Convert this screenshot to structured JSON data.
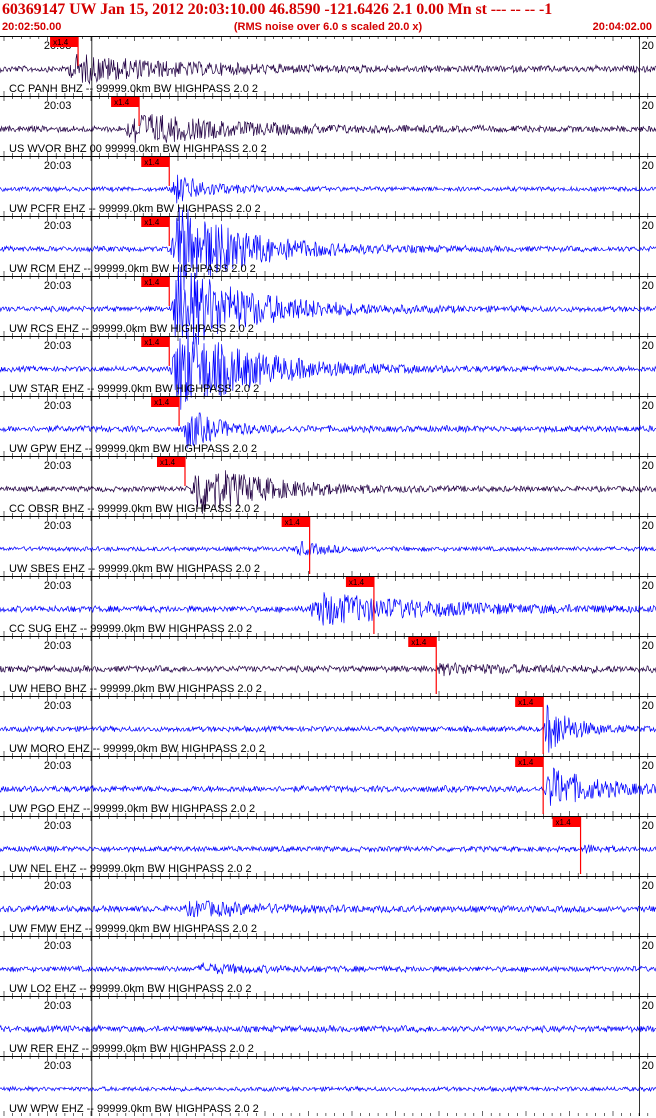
{
  "header": {
    "title": "60369147 UW Jan 15, 2012 20:03:10.00   46.8590 -121.6426  2.1 0.00 Mn st --- -- --  -1",
    "start_time": "20:02:50.00",
    "noise_note": "(RMS noise over 6.0 s scaled 20.0 x)",
    "end_time": "20:04:02.00"
  },
  "colors": {
    "header_text": "#d40000",
    "trace_blue": "#0000ff",
    "trace_dark": "#220044",
    "pick": "#ff0000",
    "grid": "#000000"
  },
  "minute_label": "20:03",
  "minute_label_right": "20",
  "pick_label": "x1.4",
  "traces": [
    {
      "label": "CC PANH BHZ -- 99999.0km BW  HIGHPASS  2.0  2",
      "color": "dark",
      "pick": 0.119,
      "onset": 0.1,
      "amp": 0.5,
      "noise": 0.14,
      "dur": 0.35,
      "pickline": false
    },
    {
      "label": "US WVOR BHZ 00 99999.0km BW  HIGHPASS  2.0  2",
      "color": "dark",
      "pick": 0.212,
      "onset": 0.19,
      "amp": 0.6,
      "noise": 0.14,
      "dur": 0.3,
      "pickline": false
    },
    {
      "label": "UW PCFR EHZ -- 99999.0km BW  HIGHPASS  2.0  2",
      "color": "blue",
      "pick": 0.258,
      "onset": 0.26,
      "amp": 0.55,
      "noise": 0.1,
      "dur": 0.12,
      "pickline": false
    },
    {
      "label": "UW RCM EHZ -- 99999.0km BW  HIGHPASS  2.0  2",
      "color": "blue",
      "pick": 0.258,
      "onset": 0.26,
      "amp": 1.7,
      "noise": 0.12,
      "dur": 0.22,
      "pickline": false
    },
    {
      "label": "UW RCS EHZ -- 99999.0km BW  HIGHPASS  2.0  2",
      "color": "blue",
      "pick": 0.258,
      "onset": 0.26,
      "amp": 1.7,
      "noise": 0.12,
      "dur": 0.24,
      "pickline": false
    },
    {
      "label": "UW STAR EHZ -- 99999.0km BW  HIGHPASS  2.0  2",
      "color": "blue",
      "pick": 0.258,
      "onset": 0.26,
      "amp": 1.7,
      "noise": 0.12,
      "dur": 0.24,
      "pickline": false
    },
    {
      "label": "UW GPW EHZ -- 99999.0km BW  HIGHPASS  2.0  2",
      "color": "blue",
      "pick": 0.273,
      "onset": 0.28,
      "amp": 0.75,
      "noise": 0.14,
      "dur": 0.1,
      "pickline": false
    },
    {
      "label": "CC OBSR BHZ -- 99999.0km BW  HIGHPASS  2.0  2",
      "color": "dark",
      "pick": 0.282,
      "onset": 0.29,
      "amp": 1.0,
      "noise": 0.12,
      "dur": 0.22,
      "pickline": false
    },
    {
      "label": "UW SBES EHZ -- 99999.0km BW  HIGHPASS  2.0  2",
      "color": "blue",
      "pick": 0.472,
      "onset": 0.45,
      "amp": 0.25,
      "noise": 0.1,
      "dur": 0.1,
      "pickline": true
    },
    {
      "label": "CC SUG EHZ -- 99999.0km BW  HIGHPASS  2.0  2",
      "color": "blue",
      "pick": 0.57,
      "onset": 0.47,
      "amp": 0.6,
      "noise": 0.14,
      "dur": 0.35,
      "pickline": true
    },
    {
      "label": "UW HEBO BHZ -- 99999.0km BW  HIGHPASS  2.0  2",
      "color": "dark",
      "pick": 0.665,
      "onset": 0.66,
      "amp": 0.15,
      "noise": 0.14,
      "dur": 0.3,
      "pickline": true
    },
    {
      "label": "UW MORO EHZ -- 99999.0km BW  HIGHPASS  2.0  2",
      "color": "blue",
      "pick": 0.828,
      "onset": 0.83,
      "amp": 1.0,
      "noise": 0.12,
      "dur": 0.08,
      "pickline": true
    },
    {
      "label": "UW PGO EHZ -- 99999.0km BW  HIGHPASS  2.0  2",
      "color": "blue",
      "pick": 0.828,
      "onset": 0.83,
      "amp": 0.8,
      "noise": 0.14,
      "dur": 0.15,
      "pickline": true
    },
    {
      "label": "UW NEL EHZ -- 99999.0km BW  HIGHPASS  2.0  2",
      "color": "blue",
      "pick": 0.885,
      "onset": 0.89,
      "amp": 0.12,
      "noise": 0.12,
      "dur": 0.05,
      "pickline": true
    },
    {
      "label": "UW FMW EHZ -- 99999.0km BW  HIGHPASS  2.0  2",
      "color": "blue",
      "pick": null,
      "onset": 0.28,
      "amp": 0.25,
      "noise": 0.14,
      "dur": 0.25,
      "pickline": false
    },
    {
      "label": "UW LO2 EHZ -- 99999.0km BW  HIGHPASS  2.0  2",
      "color": "blue",
      "pick": null,
      "onset": 0.3,
      "amp": 0.15,
      "noise": 0.12,
      "dur": 0.2,
      "pickline": false
    },
    {
      "label": "UW RER EHZ -- 99999.0km BW  HIGHPASS  2.0  2",
      "color": "blue",
      "pick": null,
      "onset": 0.3,
      "amp": 0.0,
      "noise": 0.14,
      "dur": 0.2,
      "pickline": false
    },
    {
      "label": "UW WPW EHZ -- 99999.0km BW  HIGHPASS  2.0  2",
      "color": "blue",
      "pick": null,
      "onset": 0.3,
      "amp": 0.0,
      "noise": 0.1,
      "dur": 0.2,
      "pickline": false
    }
  ]
}
